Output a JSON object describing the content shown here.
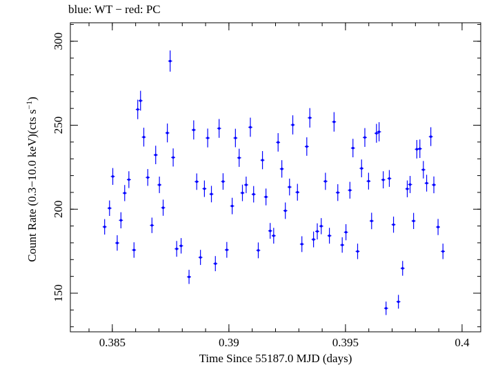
{
  "title": "blue: WT − red: PC",
  "chart_data": {
    "type": "scatter",
    "title": "blue: WT − red: PC",
    "xlabel": "Time Since 55187.0 MJD (days)",
    "ylabel_main": "Count Rate (0.3−10.0 keV)(cts s",
    "ylabel_sup": "−1",
    "ylabel_end": ")",
    "xlim": [
      0.3832,
      0.4008
    ],
    "ylim": [
      127,
      311
    ],
    "xticks": [
      0.385,
      0.39,
      0.395,
      0.4
    ],
    "xtick_labels": [
      "0.385",
      "0.39",
      "0.395",
      "0.4"
    ],
    "yticks": [
      150,
      200,
      250,
      300
    ],
    "ytick_labels": [
      "150",
      "200",
      "250",
      "300"
    ],
    "x_minor_step": 0.001,
    "y_minor_step": 10,
    "grid": false,
    "series": [
      {
        "color": "#0000ff",
        "xerr": 8.5e-05,
        "points": [
          [
            0.38467,
            189.5,
            4.6
          ],
          [
            0.38488,
            200.6,
            4.6
          ],
          [
            0.38502,
            219.5,
            5.0
          ],
          [
            0.38521,
            179.9,
            4.6
          ],
          [
            0.38537,
            193.4,
            4.8
          ],
          [
            0.38553,
            209.6,
            4.8
          ],
          [
            0.38571,
            217.6,
            5.0
          ],
          [
            0.38593,
            175.7,
            4.6
          ],
          [
            0.38609,
            259.4,
            5.8
          ],
          [
            0.38621,
            264.6,
            5.9
          ],
          [
            0.38635,
            242.9,
            5.6
          ],
          [
            0.38652,
            218.9,
            5.0
          ],
          [
            0.3867,
            190.4,
            4.6
          ],
          [
            0.38686,
            232.3,
            5.5
          ],
          [
            0.38702,
            214.5,
            4.9
          ],
          [
            0.38718,
            200.9,
            4.8
          ],
          [
            0.38736,
            245.4,
            5.6
          ],
          [
            0.38748,
            288.2,
            6.3
          ],
          [
            0.38761,
            230.8,
            5.4
          ],
          [
            0.38776,
            176.4,
            4.7
          ],
          [
            0.38795,
            178.2,
            4.6
          ],
          [
            0.38829,
            159.7,
            4.2
          ],
          [
            0.38849,
            247.2,
            5.7
          ],
          [
            0.38862,
            216.4,
            4.9
          ],
          [
            0.38878,
            171.3,
            4.5
          ],
          [
            0.38895,
            212.2,
            4.9
          ],
          [
            0.38909,
            242.4,
            5.6
          ],
          [
            0.38925,
            209.0,
            4.9
          ],
          [
            0.38942,
            167.6,
            4.5
          ],
          [
            0.38958,
            248.1,
            5.6
          ],
          [
            0.38975,
            216.5,
            4.9
          ],
          [
            0.38991,
            175.8,
            4.7
          ],
          [
            0.39014,
            201.9,
            4.9
          ],
          [
            0.39028,
            242.4,
            5.5
          ],
          [
            0.39044,
            230.6,
            5.4
          ],
          [
            0.39058,
            209.7,
            4.9
          ],
          [
            0.39074,
            214.5,
            4.9
          ],
          [
            0.39092,
            248.8,
            5.7
          ],
          [
            0.39106,
            208.9,
            4.9
          ],
          [
            0.39126,
            175.5,
            4.7
          ],
          [
            0.39144,
            229.2,
            5.4
          ],
          [
            0.39159,
            207.3,
            5.0
          ],
          [
            0.39177,
            187.1,
            4.7
          ],
          [
            0.39192,
            184.2,
            4.7
          ],
          [
            0.39211,
            239.8,
            5.5
          ],
          [
            0.39227,
            224.0,
            5.2
          ],
          [
            0.39242,
            199.1,
            4.9
          ],
          [
            0.3926,
            213.2,
            5.0
          ],
          [
            0.39274,
            250.2,
            5.7
          ],
          [
            0.39294,
            210.1,
            5.0
          ],
          [
            0.39313,
            179.2,
            4.7
          ],
          [
            0.39334,
            237.3,
            5.5
          ],
          [
            0.39347,
            254.4,
            5.8
          ],
          [
            0.39363,
            182.0,
            4.7
          ],
          [
            0.39379,
            186.8,
            4.8
          ],
          [
            0.39396,
            189.9,
            4.8
          ],
          [
            0.39414,
            216.6,
            5.1
          ],
          [
            0.39431,
            184.2,
            4.7
          ],
          [
            0.39451,
            252.0,
            5.8
          ],
          [
            0.39467,
            209.9,
            5.0
          ],
          [
            0.39486,
            178.7,
            4.6
          ],
          [
            0.39502,
            186.3,
            4.8
          ],
          [
            0.39519,
            211.3,
            5.0
          ],
          [
            0.39532,
            236.4,
            5.5
          ],
          [
            0.39552,
            174.9,
            4.6
          ],
          [
            0.39569,
            224.3,
            5.3
          ],
          [
            0.39583,
            242.7,
            5.6
          ],
          [
            0.39599,
            216.7,
            5.0
          ],
          [
            0.39612,
            193.0,
            4.9
          ],
          [
            0.39633,
            245.2,
            5.6
          ],
          [
            0.39644,
            246.1,
            5.7
          ],
          [
            0.39662,
            217.5,
            5.1
          ],
          [
            0.39674,
            141.0,
            4.0
          ],
          [
            0.39688,
            218.3,
            5.0
          ],
          [
            0.39706,
            190.8,
            4.8
          ],
          [
            0.39727,
            144.9,
            4.1
          ],
          [
            0.39745,
            164.8,
            4.4
          ],
          [
            0.39765,
            212.1,
            5.0
          ],
          [
            0.39777,
            214.7,
            5.1
          ],
          [
            0.39792,
            193.0,
            4.8
          ],
          [
            0.39806,
            235.7,
            5.5
          ],
          [
            0.39819,
            236.0,
            5.5
          ],
          [
            0.39834,
            223.5,
            5.2
          ],
          [
            0.39848,
            215.5,
            5.0
          ],
          [
            0.39866,
            243.2,
            5.6
          ],
          [
            0.39879,
            214.5,
            5.0
          ],
          [
            0.39897,
            189.4,
            4.8
          ],
          [
            0.39918,
            174.9,
            4.6
          ]
        ]
      }
    ]
  }
}
